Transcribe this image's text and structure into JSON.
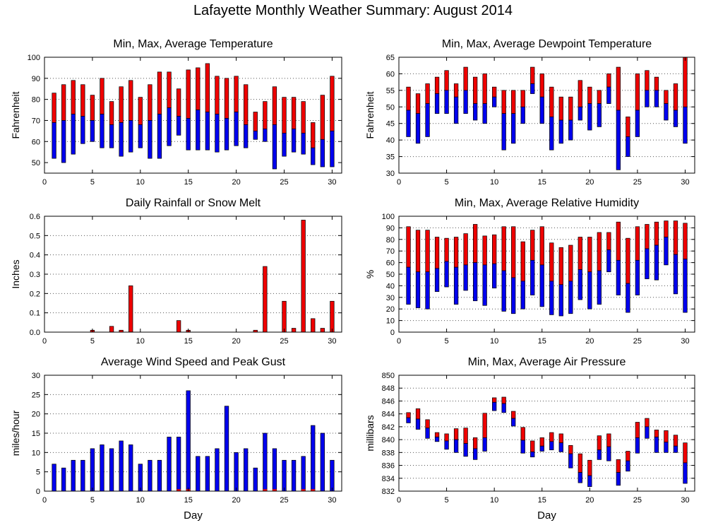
{
  "page_title": "Lafayette Monthly Weather Summary: August 2014",
  "colors": {
    "upper": "#ee0000",
    "lower": "#0000ee",
    "grid": "#555555"
  },
  "chart_data": [
    {
      "id": "temp",
      "type": "bar",
      "title": "Min, Max, Average Temperature",
      "ylabel": "Fahrenheit",
      "xlabel": "",
      "ylim": [
        45,
        100
      ],
      "yticks": [
        50,
        60,
        70,
        80,
        90,
        100
      ],
      "xticks": [
        0,
        5,
        10,
        15,
        20,
        25,
        30
      ],
      "grid": true,
      "series": [
        {
          "name": "",
          "values": [
            [
              52,
              69,
              83
            ],
            [
              50,
              70,
              87
            ],
            [
              54,
              73,
              89
            ],
            [
              59,
              72,
              87
            ],
            [
              60,
              70,
              82
            ],
            [
              57,
              73,
              90
            ],
            [
              57,
              68,
              79
            ],
            [
              53,
              69,
              86
            ],
            [
              55,
              70,
              89
            ],
            [
              57,
              68,
              81
            ],
            [
              52,
              70,
              87
            ],
            [
              52,
              73,
              93
            ],
            [
              58,
              76,
              93
            ],
            [
              63,
              72,
              85
            ],
            [
              56,
              71,
              94
            ],
            [
              56,
              75,
              95
            ],
            [
              56,
              74,
              97
            ],
            [
              55,
              73,
              91
            ],
            [
              56,
              71,
              90
            ],
            [
              58,
              74,
              91
            ],
            [
              57,
              68,
              87
            ],
            [
              61,
              65,
              74
            ],
            [
              60,
              66,
              79
            ],
            [
              47,
              68,
              86
            ],
            [
              53,
              64,
              81
            ],
            [
              55,
              66,
              81
            ],
            [
              54,
              64,
              79
            ],
            [
              49,
              57,
              69
            ],
            [
              48,
              61,
              82
            ],
            [
              48,
              65,
              91
            ]
          ]
        }
      ]
    },
    {
      "id": "dew",
      "type": "bar",
      "title": "Min, Max, Average Dewpoint Temperature",
      "ylabel": "Fahrenheit",
      "xlabel": "",
      "ylim": [
        30,
        65
      ],
      "yticks": [
        30,
        35,
        40,
        45,
        50,
        55,
        60,
        65
      ],
      "xticks": [
        0,
        5,
        10,
        15,
        20,
        25,
        30
      ],
      "grid": true,
      "series": [
        {
          "name": "",
          "values": [
            [
              41,
              49,
              56
            ],
            [
              39,
              48,
              54
            ],
            [
              41,
              51,
              57
            ],
            [
              48,
              54,
              59
            ],
            [
              48,
              55,
              61
            ],
            [
              45,
              53,
              57
            ],
            [
              48,
              55,
              62
            ],
            [
              46,
              51,
              59
            ],
            [
              45,
              51,
              60
            ],
            [
              50,
              53,
              56
            ],
            [
              37,
              48,
              55
            ],
            [
              39,
              48,
              55
            ],
            [
              45,
              50,
              55
            ],
            [
              54,
              57,
              62
            ],
            [
              45,
              53,
              60
            ],
            [
              37,
              47,
              56
            ],
            [
              39,
              46,
              53
            ],
            [
              40,
              46,
              53
            ],
            [
              46,
              50,
              58
            ],
            [
              43,
              51,
              56
            ],
            [
              44,
              51,
              55
            ],
            [
              51,
              56,
              60
            ],
            [
              31,
              49,
              62
            ],
            [
              35,
              41,
              47
            ],
            [
              41,
              49,
              60
            ],
            [
              50,
              55,
              61
            ],
            [
              50,
              55,
              59
            ],
            [
              46,
              51,
              55
            ],
            [
              44,
              49,
              57
            ],
            [
              39,
              50,
              65
            ]
          ]
        }
      ]
    },
    {
      "id": "rain",
      "type": "bar",
      "title": "Daily Rainfall or Snow Melt",
      "ylabel": "Inches",
      "xlabel": "",
      "ylim": [
        0,
        0.6
      ],
      "yticks": [
        0,
        0.1,
        0.2,
        0.3,
        0.4,
        0.5,
        0.6
      ],
      "xticks": [
        0,
        5,
        10,
        15,
        20,
        25,
        30
      ],
      "grid": true,
      "series": [
        {
          "name": "",
          "values": [
            0,
            0,
            0,
            0,
            0.01,
            0,
            0.03,
            0.01,
            0.24,
            0,
            0,
            0,
            0,
            0.06,
            0.01,
            0,
            0,
            0,
            0,
            0,
            0,
            0.01,
            0.34,
            0,
            0.16,
            0.02,
            0.58,
            0.07,
            0.02,
            0.16
          ]
        }
      ]
    },
    {
      "id": "hum",
      "type": "bar",
      "title": "Min, Max, Average Relative Humidity",
      "ylabel": "%",
      "xlabel": "",
      "ylim": [
        0,
        100
      ],
      "yticks": [
        0,
        10,
        20,
        30,
        40,
        50,
        60,
        70,
        80,
        90,
        100
      ],
      "xticks": [
        0,
        5,
        10,
        15,
        20,
        25,
        30
      ],
      "grid": true,
      "series": [
        {
          "name": "",
          "values": [
            [
              24,
              56,
              91
            ],
            [
              21,
              52,
              88
            ],
            [
              20,
              52,
              88
            ],
            [
              35,
              55,
              82
            ],
            [
              39,
              61,
              81
            ],
            [
              24,
              56,
              82
            ],
            [
              36,
              58,
              85
            ],
            [
              27,
              60,
              93
            ],
            [
              23,
              58,
              83
            ],
            [
              38,
              59,
              84
            ],
            [
              18,
              53,
              91
            ],
            [
              16,
              47,
              91
            ],
            [
              20,
              44,
              78
            ],
            [
              32,
              62,
              88
            ],
            [
              22,
              58,
              91
            ],
            [
              15,
              44,
              77
            ],
            [
              14,
              41,
              73
            ],
            [
              16,
              44,
              75
            ],
            [
              28,
              54,
              82
            ],
            [
              20,
              52,
              82
            ],
            [
              24,
              53,
              86
            ],
            [
              52,
              71,
              86
            ],
            [
              32,
              62,
              95
            ],
            [
              17,
              42,
              81
            ],
            [
              32,
              62,
              91
            ],
            [
              46,
              72,
              93
            ],
            [
              45,
              75,
              95
            ],
            [
              58,
              82,
              96
            ],
            [
              33,
              67,
              96
            ],
            [
              17,
              63,
              94
            ]
          ]
        }
      ]
    },
    {
      "id": "wind",
      "type": "bar",
      "title": "Average Wind Speed and Peak Gust",
      "ylabel": "miles/hour",
      "xlabel": "Day",
      "ylim": [
        0,
        30
      ],
      "yticks": [
        0,
        5,
        10,
        15,
        20,
        25,
        30
      ],
      "xticks": [
        0,
        5,
        10,
        15,
        20,
        25,
        30
      ],
      "grid": true,
      "series": [
        {
          "name": "",
          "values": [
            7,
            6,
            8,
            8,
            11,
            12,
            11,
            13,
            12,
            7,
            8,
            8,
            14,
            14,
            26,
            9,
            9,
            11,
            22,
            10,
            11,
            6,
            15,
            11,
            8,
            8,
            9,
            17,
            15,
            8
          ]
        },
        {
          "name": "",
          "values": [
            0,
            0,
            0,
            0,
            0,
            0,
            0,
            0,
            0,
            0,
            0,
            0,
            0,
            0.5,
            0.5,
            0,
            0,
            0,
            0,
            0,
            0,
            0,
            0.5,
            0.5,
            0,
            0,
            0.5,
            0.5,
            0,
            0
          ]
        }
      ]
    },
    {
      "id": "press",
      "type": "bar",
      "title": "Min, Max, Average Air Pressure",
      "ylabel": "millibars",
      "xlabel": "Day",
      "ylim": [
        832,
        850
      ],
      "yticks": [
        832,
        834,
        836,
        838,
        840,
        842,
        844,
        846,
        848,
        850
      ],
      "xticks": [
        0,
        5,
        10,
        15,
        20,
        25,
        30
      ],
      "grid": true,
      "series": [
        {
          "name": "",
          "values": [
            [
              842.6,
              843.4,
              844.2
            ],
            [
              841.6,
              843.2,
              844.8
            ],
            [
              840.2,
              841.8,
              843.1
            ],
            [
              839.7,
              840.4,
              841.1
            ],
            [
              838.5,
              839.8,
              840.9
            ],
            [
              838.0,
              840.0,
              841.7
            ],
            [
              837.4,
              839.4,
              841.8
            ],
            [
              836.9,
              838.6,
              840.3
            ],
            [
              838.2,
              840.3,
              844.1
            ],
            [
              844.5,
              845.8,
              846.5
            ],
            [
              844.2,
              845.6,
              846.6
            ],
            [
              842.1,
              843.3,
              844.4
            ],
            [
              837.9,
              839.9,
              841.9
            ],
            [
              837.3,
              838.1,
              839.8
            ],
            [
              838.2,
              839.0,
              840.3
            ],
            [
              838.4,
              839.7,
              841.1
            ],
            [
              838.1,
              839.5,
              840.9
            ],
            [
              835.6,
              837.8,
              839.1
            ],
            [
              833.3,
              834.9,
              837.8
            ],
            [
              832.7,
              834.4,
              836.8
            ],
            [
              836.9,
              838.4,
              840.6
            ],
            [
              836.7,
              838.9,
              840.9
            ],
            [
              832.9,
              834.9,
              836.9
            ],
            [
              835.1,
              836.7,
              838.2
            ],
            [
              837.9,
              840.3,
              842.7
            ],
            [
              840.2,
              842.0,
              843.3
            ],
            [
              838.0,
              840.4,
              841.5
            ],
            [
              838.0,
              839.6,
              841.4
            ],
            [
              838.0,
              839.0,
              840.7
            ],
            [
              833.2,
              836.4,
              839.5
            ]
          ]
        }
      ]
    }
  ]
}
